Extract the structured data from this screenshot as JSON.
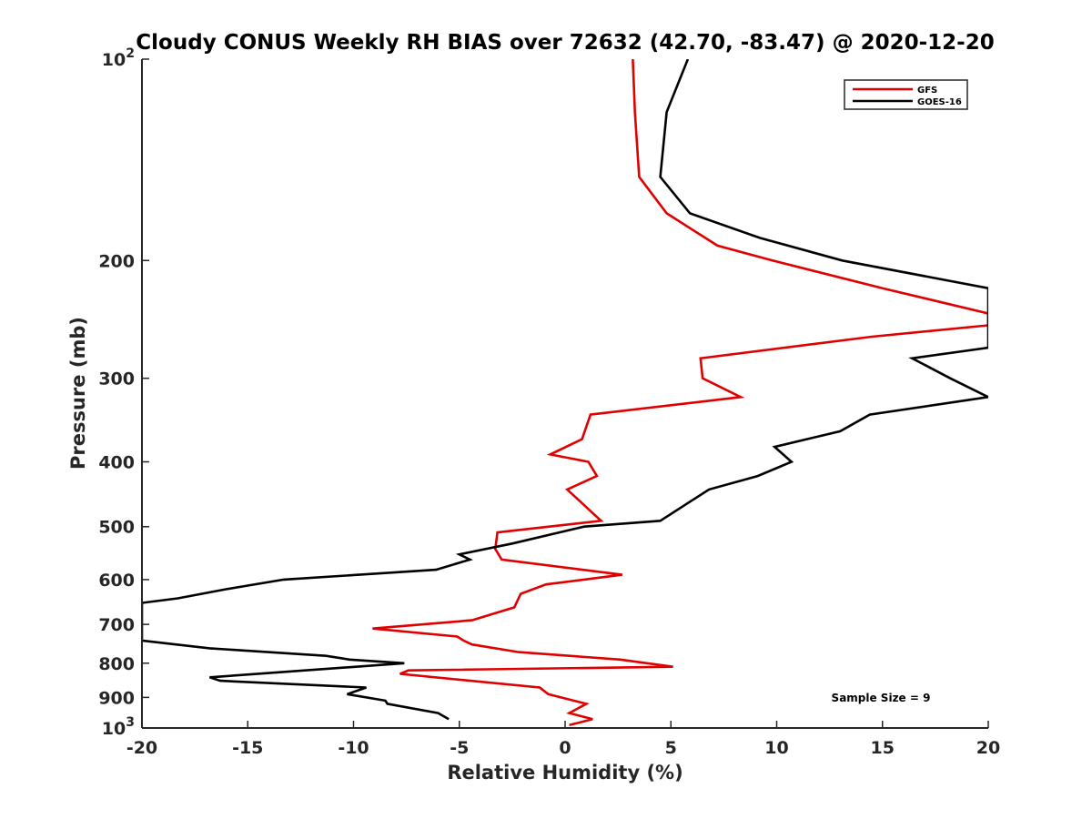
{
  "chart_data": {
    "type": "line",
    "title": "Cloudy CONUS Weekly RH BIAS over 72632 (42.70, -83.47) @ 2020-12-20",
    "xlabel": "Relative Humidity (%)",
    "ylabel": "Pressure (mb)",
    "xlim": [
      -20,
      20
    ],
    "ylim": [
      100,
      1000
    ],
    "y_scale": "log",
    "y_reversed": true,
    "grid": false,
    "x_ticks": [
      "-20",
      "-15",
      "-10",
      "-5",
      "0",
      "5",
      "10",
      "15",
      "20"
    ],
    "y_ticks": [
      {
        "value": 100,
        "base": "10",
        "exp": "2"
      },
      {
        "value": 200,
        "label": "200"
      },
      {
        "value": 300,
        "label": "300"
      },
      {
        "value": 400,
        "label": "400"
      },
      {
        "value": 500,
        "label": "500"
      },
      {
        "value": 600,
        "label": "600"
      },
      {
        "value": 700,
        "label": "700"
      },
      {
        "value": 800,
        "label": "800"
      },
      {
        "value": 900,
        "label": "900"
      },
      {
        "value": 1000,
        "base": "10",
        "exp": "3"
      }
    ],
    "legend_position": "top-right",
    "series": [
      {
        "name": "GFS",
        "color": "#e00000",
        "x": [
          3.2,
          3.3,
          3.5,
          4.8,
          7.2,
          9.8,
          15,
          20,
          20,
          14.5,
          6.4,
          6.5,
          8.3,
          1.2,
          0.8,
          -0.7,
          1.1,
          1.5,
          0.1,
          1.7,
          -3.2,
          -3.3,
          -3,
          2.7,
          -0.9,
          -2.1,
          -2.4,
          -4.4,
          -9.1,
          -5.1,
          -4.8,
          -4.4,
          -2.2,
          2.6,
          5.1,
          -7.4,
          -7.8,
          -1.2,
          -0.8,
          1,
          0.2,
          1.3,
          0.2
        ],
        "y": [
          100,
          120,
          150,
          170,
          190,
          200,
          220,
          240,
          250,
          260,
          280,
          300,
          320,
          340,
          370,
          390,
          400,
          420,
          440,
          490,
          510,
          540,
          560,
          590,
          610,
          630,
          660,
          690,
          710,
          730,
          740,
          750,
          770,
          790,
          810,
          820,
          830,
          870,
          890,
          920,
          950,
          970,
          990
        ]
      },
      {
        "name": "GOES-16",
        "color": "#000000",
        "x": [
          5.8,
          4.8,
          4.5,
          5.9,
          9.2,
          13.1,
          20,
          20,
          16.4,
          18.2,
          20,
          20,
          14.4,
          13,
          9.9,
          10.7,
          9.1,
          6.8,
          4.5,
          0.9,
          -2.5,
          -5,
          -4.5,
          -6.1,
          -13.3,
          -16,
          -18.3,
          -20,
          -20,
          -16.8,
          -11.3,
          -10.2,
          -7.6,
          -16.8,
          -16.3,
          -9.4,
          -10.3,
          -8.5,
          -8.4,
          -6,
          -5.5
        ],
        "y": [
          100,
          120,
          150,
          170,
          185,
          200,
          220,
          270,
          280,
          300,
          320,
          320,
          340,
          360,
          380,
          400,
          420,
          440,
          490,
          500,
          530,
          550,
          560,
          580,
          600,
          620,
          640,
          650,
          740,
          760,
          780,
          790,
          800,
          840,
          850,
          870,
          890,
          910,
          920,
          950,
          970
        ]
      }
    ],
    "annotations": [
      {
        "text": "Sample Size = 9"
      }
    ]
  }
}
